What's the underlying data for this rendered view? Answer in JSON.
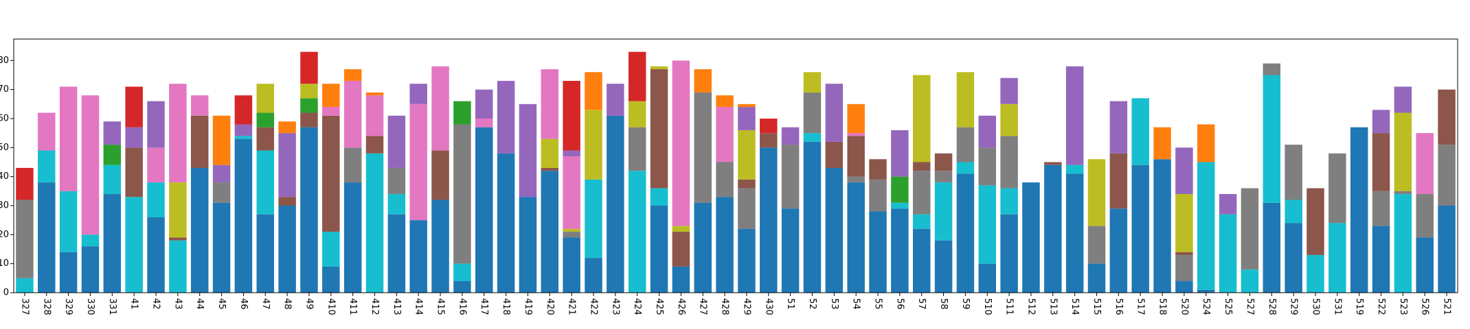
{
  "chart_data": {
    "type": "stacked-bar",
    "categories": [
      "327",
      "328",
      "329",
      "330",
      "331",
      "41",
      "42",
      "43",
      "44",
      "45",
      "46",
      "47",
      "48",
      "49",
      "410",
      "411",
      "412",
      "413",
      "414",
      "415",
      "416",
      "417",
      "418",
      "419",
      "420",
      "421",
      "422",
      "423",
      "424",
      "425",
      "426",
      "427",
      "428",
      "429",
      "430",
      "51",
      "52",
      "53",
      "54",
      "55",
      "56",
      "57",
      "58",
      "59",
      "510",
      "511",
      "512",
      "513",
      "514",
      "515",
      "516",
      "517",
      "518",
      "520",
      "524",
      "525",
      "527",
      "528",
      "529",
      "530",
      "531",
      "519",
      "522",
      "523",
      "526",
      "521"
    ],
    "series": [
      {
        "color": "#1f77b4",
        "values": [
          0,
          38,
          14,
          16,
          34,
          0,
          26,
          0,
          43,
          31,
          53,
          27,
          30,
          57,
          9,
          38,
          0,
          27,
          25,
          32,
          4,
          57,
          48,
          33,
          42,
          19,
          12,
          61,
          0,
          30,
          9,
          31,
          33,
          22,
          50,
          29,
          52,
          43,
          38,
          28,
          29,
          22,
          18,
          41,
          10,
          27,
          38,
          44,
          41,
          10,
          29,
          44,
          46,
          4,
          1,
          0,
          0,
          31,
          24,
          0,
          0,
          57,
          23,
          0,
          19,
          30
        ]
      },
      {
        "color": "#17becf",
        "values": [
          5,
          11,
          21,
          4,
          10,
          33,
          12,
          18,
          0,
          0,
          1,
          22,
          0,
          0,
          12,
          0,
          48,
          7,
          0,
          0,
          6,
          0,
          0,
          0,
          0,
          0,
          27,
          0,
          42,
          6,
          0,
          0,
          0,
          0,
          0,
          0,
          3,
          0,
          0,
          0,
          2,
          5,
          20,
          4,
          27,
          9,
          0,
          0,
          3,
          0,
          0,
          23,
          0,
          0,
          44,
          27,
          8,
          44,
          8,
          13,
          24,
          0,
          0,
          34,
          0,
          0
        ]
      },
      {
        "color": "#7f7f7f",
        "values": [
          27,
          0,
          0,
          0,
          0,
          0,
          0,
          0,
          0,
          7,
          0,
          0,
          0,
          0,
          0,
          12,
          0,
          9,
          0,
          0,
          48,
          0,
          0,
          0,
          0,
          2,
          0,
          0,
          15,
          0,
          0,
          38,
          12,
          14,
          0,
          22,
          14,
          0,
          2,
          11,
          0,
          15,
          4,
          12,
          13,
          18,
          0,
          0,
          0,
          13,
          0,
          0,
          0,
          9,
          0,
          0,
          28,
          4,
          19,
          0,
          24,
          0,
          12,
          1,
          15,
          21
        ]
      },
      {
        "color": "#8c564b",
        "values": [
          0,
          0,
          0,
          0,
          0,
          17,
          0,
          1,
          18,
          0,
          0,
          8,
          3,
          5,
          40,
          0,
          6,
          0,
          0,
          17,
          0,
          0,
          0,
          0,
          1,
          0,
          0,
          0,
          0,
          41,
          12,
          0,
          0,
          3,
          5,
          0,
          0,
          9,
          14,
          7,
          0,
          3,
          6,
          0,
          0,
          0,
          0,
          1,
          0,
          0,
          19,
          0,
          0,
          1,
          0,
          0,
          0,
          0,
          0,
          23,
          0,
          0,
          20,
          0,
          0,
          19
        ]
      },
      {
        "color": "#2ca02c",
        "values": [
          0,
          0,
          0,
          0,
          7,
          0,
          0,
          0,
          0,
          0,
          0,
          5,
          0,
          5,
          0,
          0,
          0,
          0,
          0,
          0,
          8,
          0,
          0,
          0,
          0,
          0,
          0,
          0,
          0,
          0,
          0,
          0,
          0,
          0,
          0,
          0,
          0,
          0,
          0,
          0,
          9,
          0,
          0,
          0,
          0,
          0,
          0,
          0,
          0,
          0,
          0,
          0,
          0,
          0,
          0,
          0,
          0,
          0,
          0,
          0,
          0,
          0,
          0,
          0,
          0,
          0
        ]
      },
      {
        "color": "#bcbd22",
        "values": [
          0,
          0,
          0,
          0,
          0,
          0,
          0,
          19,
          0,
          0,
          0,
          10,
          0,
          5,
          0,
          0,
          0,
          0,
          0,
          0,
          0,
          0,
          0,
          0,
          10,
          1,
          24,
          0,
          9,
          1,
          2,
          0,
          0,
          17,
          0,
          0,
          7,
          0,
          0,
          0,
          0,
          30,
          0,
          19,
          0,
          11,
          0,
          0,
          0,
          23,
          0,
          0,
          0,
          20,
          0,
          0,
          0,
          0,
          0,
          0,
          0,
          0,
          0,
          27,
          0,
          0
        ]
      },
      {
        "color": "#e377c2",
        "values": [
          0,
          13,
          36,
          48,
          0,
          0,
          12,
          34,
          7,
          0,
          0,
          0,
          0,
          0,
          3,
          23,
          14,
          0,
          40,
          29,
          0,
          3,
          0,
          0,
          24,
          25,
          0,
          0,
          0,
          0,
          57,
          0,
          19,
          0,
          0,
          0,
          0,
          0,
          1,
          0,
          0,
          0,
          0,
          0,
          0,
          0,
          0,
          0,
          0,
          0,
          0,
          0,
          0,
          0,
          0,
          0,
          0,
          0,
          0,
          0,
          0,
          0,
          0,
          0,
          21,
          0
        ]
      },
      {
        "color": "#9467bd",
        "values": [
          0,
          0,
          0,
          0,
          8,
          7,
          16,
          0,
          0,
          6,
          4,
          0,
          22,
          0,
          0,
          0,
          0,
          18,
          7,
          0,
          0,
          10,
          25,
          32,
          0,
          2,
          0,
          11,
          0,
          0,
          0,
          0,
          0,
          8,
          0,
          6,
          0,
          20,
          0,
          0,
          16,
          0,
          0,
          0,
          11,
          9,
          0,
          0,
          34,
          0,
          18,
          0,
          0,
          16,
          0,
          7,
          0,
          0,
          0,
          0,
          0,
          0,
          8,
          9,
          0,
          0
        ]
      },
      {
        "color": "#ff7f0e",
        "values": [
          0,
          0,
          0,
          0,
          0,
          0,
          0,
          0,
          0,
          17,
          0,
          0,
          4,
          0,
          8,
          4,
          1,
          0,
          0,
          0,
          0,
          0,
          0,
          0,
          0,
          0,
          13,
          0,
          0,
          0,
          0,
          8,
          4,
          1,
          0,
          0,
          0,
          0,
          10,
          0,
          0,
          0,
          0,
          0,
          0,
          0,
          0,
          0,
          0,
          0,
          0,
          0,
          11,
          0,
          13,
          0,
          0,
          0,
          0,
          0,
          0,
          0,
          0,
          0,
          0,
          0
        ]
      },
      {
        "color": "#d62728",
        "values": [
          11,
          0,
          0,
          0,
          0,
          14,
          0,
          0,
          0,
          0,
          10,
          0,
          0,
          11,
          0,
          0,
          0,
          0,
          0,
          0,
          0,
          0,
          0,
          0,
          0,
          24,
          0,
          0,
          17,
          0,
          0,
          0,
          0,
          0,
          5,
          0,
          0,
          0,
          0,
          0,
          0,
          0,
          0,
          0,
          0,
          0,
          0,
          0,
          0,
          0,
          0,
          0,
          0,
          0,
          0,
          0,
          0,
          0,
          0,
          0,
          0,
          0,
          0,
          0,
          0,
          0
        ]
      }
    ],
    "ylim": [
      0,
      87.4
    ],
    "yticks": [
      0,
      10,
      20,
      30,
      40,
      50,
      60,
      70,
      80
    ],
    "grid": false
  }
}
